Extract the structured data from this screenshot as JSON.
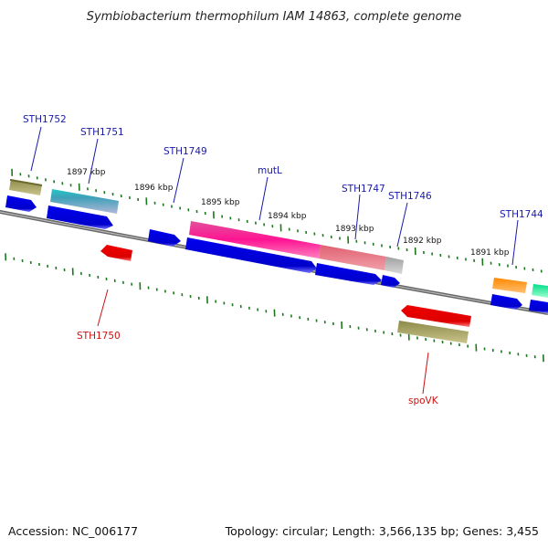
{
  "title": "Symbiobacterium thermophilum IAM 14863, complete genome",
  "footer": {
    "accession": "Accession: NC_006177",
    "summary": "Topology: circular; Length: 3,566,135 bp; Genes: 3,455"
  },
  "colors": {
    "forward_label": "#1a1aaa",
    "reverse_label": "#cc1111",
    "tick": "#1a7a1a",
    "backbone": "#888888"
  },
  "kbp_ticks": [
    "1897 kbp",
    "1896 kbp",
    "1895 kbp",
    "1894 kbp",
    "1893 kbp",
    "1892 kbp",
    "1891 kbp"
  ],
  "gene_labels": [
    {
      "name": "STH1752",
      "strand": "forward"
    },
    {
      "name": "STH1751",
      "strand": "forward"
    },
    {
      "name": "STH1749",
      "strand": "forward"
    },
    {
      "name": "mutL",
      "strand": "forward"
    },
    {
      "name": "STH1747",
      "strand": "forward"
    },
    {
      "name": "STH1746",
      "strand": "forward"
    },
    {
      "name": "STH1744",
      "strand": "forward"
    },
    {
      "name": "STH1750",
      "strand": "reverse"
    },
    {
      "name": "spoVK",
      "strand": "reverse"
    }
  ]
}
